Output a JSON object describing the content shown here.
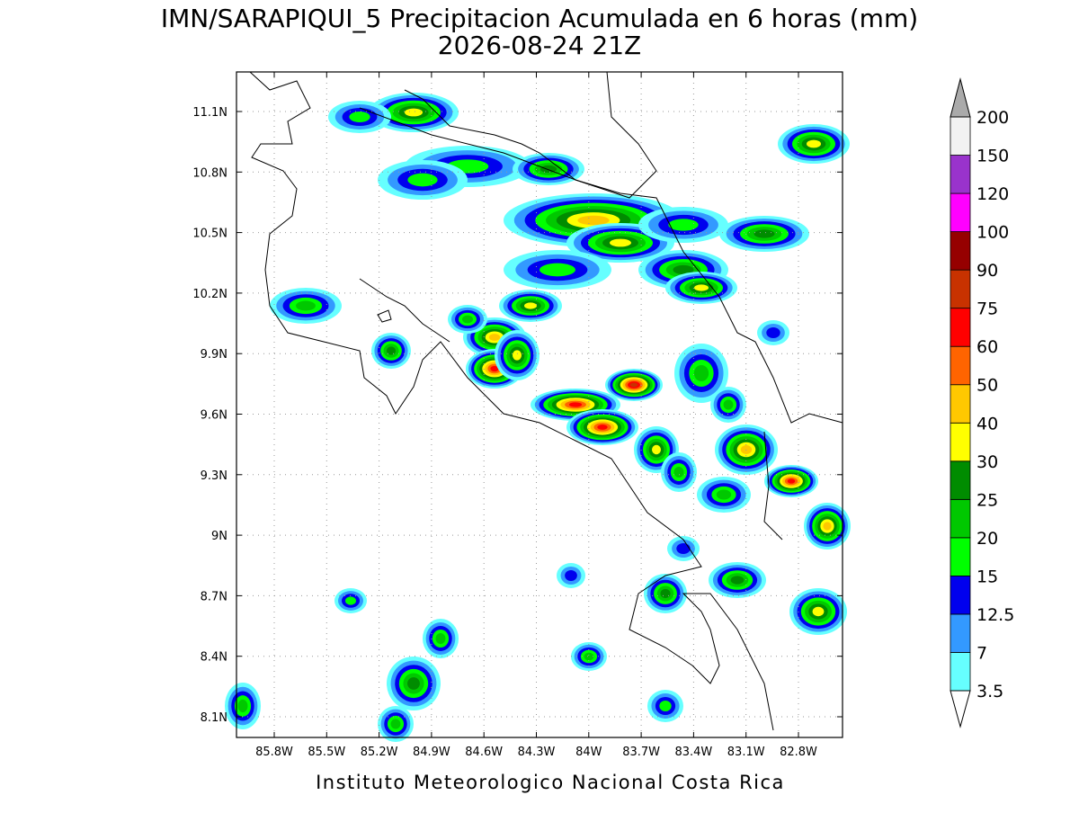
{
  "title": "IMN/SARAPIQUI_5 Precipitacion Acumulada en 6 horas (mm)",
  "subtitle": "2026-08-24 21Z",
  "map": {
    "lat_ticks": [
      "11.1N",
      "10.8N",
      "10.5N",
      "10.2N",
      "9.9N",
      "9.6N",
      "9.3N",
      "9N",
      "8.7N",
      "8.4N",
      "8.1N"
    ],
    "lon_ticks": [
      "85.8W",
      "85.5W",
      "85.2W",
      "84.9W",
      "84.6W",
      "84.3W",
      "84W",
      "83.7W",
      "83.4W",
      "83.1W",
      "82.8W"
    ]
  },
  "colorbar": {
    "levels": [
      "3.5",
      "7",
      "12.5",
      "15",
      "20",
      "25",
      "30",
      "40",
      "50",
      "60",
      "75",
      "90",
      "100",
      "120",
      "150",
      "200"
    ],
    "colors": [
      "#66ffff",
      "#3399ff",
      "#0000ee",
      "#00ff00",
      "#00c800",
      "#008c00",
      "#ffff00",
      "#ffc800",
      "#ff6400",
      "#ff0000",
      "#c83200",
      "#960000",
      "#ff00ff",
      "#9933cc",
      "#f2f2f2"
    ],
    "over_color": "#aaaaaa",
    "under_color": "#ffffff"
  },
  "footer": "Instituto Meteorologico Nacional Costa Rica"
}
